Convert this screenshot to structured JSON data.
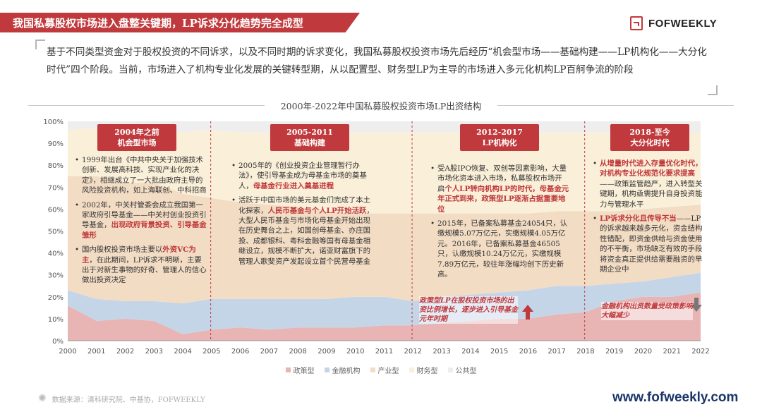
{
  "header": {
    "title": "我国私募股权市场进入盘整关键期，LP诉求分化趋势完全成型",
    "logo_text": "FOFWEEKLY"
  },
  "intro": "基于不同类型资金对于股权投资的不同诉求，以及不同时期的诉求变化，我国私募股权投资市场先后经历“机会型市场——基础构建——LP机构化——大分化时代”四个阶段。当前，市场进入了机构专业化发展的关键转型期，从以配置型、财务型LP为主导的市场进入多元化机构LP百舸争流的阶段",
  "chart_title": "2000年-2022年中国私募股权投资市场LP出资结构",
  "phases": [
    {
      "label": "2004年之前\n机会型市场"
    },
    {
      "label": "2005-2011\n基础构建"
    },
    {
      "label": "2012-2017\nLP机构化"
    },
    {
      "label": "2018-至今\n大分化时代"
    }
  ],
  "notes": {
    "p1": [
      {
        "pre": "1999年出台《中共中央关于加强技术创新、发展高科技、实现产业化的决定》，相继成立了一大批由政府主导的风险投资机构，如上海联创、中科招商",
        "hl": "",
        "post": ""
      },
      {
        "pre": "2002年，中关村管委会成立我国第一家政府引导基金——中关村创业投资引导基金，",
        "hl": "出现政府背景投资、引导基金雏形",
        "post": ""
      },
      {
        "pre": "国内股权投资市场主要以",
        "hl": "外资VC为主",
        "post": "，在此期间，LP诉求不明晰，主要出于对新生事物的好奇、管理人的信心做出投资决定"
      }
    ],
    "p2": [
      {
        "pre": "2005年的《创业投资企业管理暂行办法》，使引导基金成为母基金市场的奠基人，",
        "hl": "母基金行业进入奠基进程",
        "post": ""
      },
      {
        "pre": "活跃于中国市场的美元基金们完成了本土化探索，",
        "hl": "人民币基金与个人LP开始活跃",
        "post": "，大型人民币基金与市场化母基金开始出现在历史舞台之上，如国创母基金、亦庄国投、成都银科、粤科金融等国有母基金相继设立，规模不断扩大，诺亚财富旗下的管理人歌斐资产发起设立首个民营母基金"
      }
    ],
    "p3": [
      {
        "pre": "受A股IPO恢复、双创等因素影响，大量市场化资本进入市场，私募股权市场开启",
        "hl": "个人LP转向机构LP的时代，母基金元年正式到来，政策型LP逐渐占据重要地位",
        "post": ""
      },
      {
        "pre": "2015年，已备案私募基金24054只，认缴规模5.07万亿元，实缴规模4.05万亿元。2016年，已备案私募基金46505只，认缴规模10.24万亿元，实缴规模7.89万亿元，较往年涨幅均创下历史新高。",
        "hl": "",
        "post": ""
      }
    ],
    "p4": [
      {
        "pre": "",
        "hl": "从增量时代进入存量优化时代，对机构专业化规范化要求提高",
        "post": "——政策监管趋严，进入转型关键期，机构亟需提升自身投资能力与管理水平"
      },
      {
        "pre": "",
        "hl": "LP诉求分化且传导不当",
        "post": "——LP的诉求越来越多元化，资金结构性错配，即资金供给与资金使用的不平衡，市场缺乏有效的手段将资金真正提供给需要融资的早期企业中"
      }
    ]
  },
  "callouts": {
    "c1": "政策型LP在股权投资市场的出资比例增长，逐步进入引导基金元年时期",
    "c2": "金融机构出资数量受政策影响大幅减少"
  },
  "chart_data": {
    "type": "area",
    "stacked": true,
    "x": [
      "2000",
      "2001",
      "2002",
      "2003",
      "2004",
      "2005",
      "2006",
      "2007",
      "2008",
      "2009",
      "2010",
      "2011",
      "2012",
      "2013",
      "2014",
      "2015",
      "2016",
      "2017",
      "2018",
      "2019",
      "2020",
      "2021",
      "2022"
    ],
    "ylim": [
      0,
      100
    ],
    "yticks": [
      "0%",
      "10%",
      "20%",
      "30%",
      "40%",
      "50%",
      "60%",
      "70%",
      "80%",
      "90%",
      "100%"
    ],
    "series": [
      {
        "name": "政策型",
        "color": "#e8b4b4",
        "values": [
          16,
          9,
          10,
          9,
          3,
          5,
          6,
          5,
          6,
          6,
          6,
          7,
          7,
          8,
          9,
          10,
          10,
          12,
          13,
          18,
          20,
          20,
          22
        ]
      },
      {
        "name": "金融机构",
        "color": "#c5d5e8",
        "values": [
          7,
          10,
          8,
          9,
          14,
          14,
          13,
          14,
          13,
          13,
          14,
          13,
          11,
          12,
          12,
          12,
          13,
          13,
          12,
          8,
          7,
          9,
          9
        ]
      },
      {
        "name": "产业型",
        "color": "#f2dcc4",
        "values": [
          52,
          56,
          54,
          54,
          50,
          46,
          44,
          43,
          42,
          40,
          38,
          38,
          40,
          38,
          37,
          36,
          35,
          34,
          34,
          33,
          33,
          32,
          31
        ]
      },
      {
        "name": "财务型",
        "color": "#faefd8",
        "values": [
          21,
          22,
          24,
          24,
          28,
          31,
          32,
          33,
          34,
          36,
          37,
          37,
          37,
          37,
          37,
          37,
          37,
          36,
          36,
          36,
          35,
          34,
          33
        ]
      },
      {
        "name": "公共型",
        "color": "#eeeeee",
        "values": [
          4,
          3,
          4,
          4,
          5,
          4,
          5,
          5,
          5,
          5,
          5,
          5,
          5,
          5,
          5,
          5,
          5,
          5,
          5,
          5,
          5,
          5,
          5
        ]
      }
    ]
  },
  "source": "数据来源：清科研究院、中基协，FOFWEEKLY",
  "site": "www.fofweekly.com"
}
